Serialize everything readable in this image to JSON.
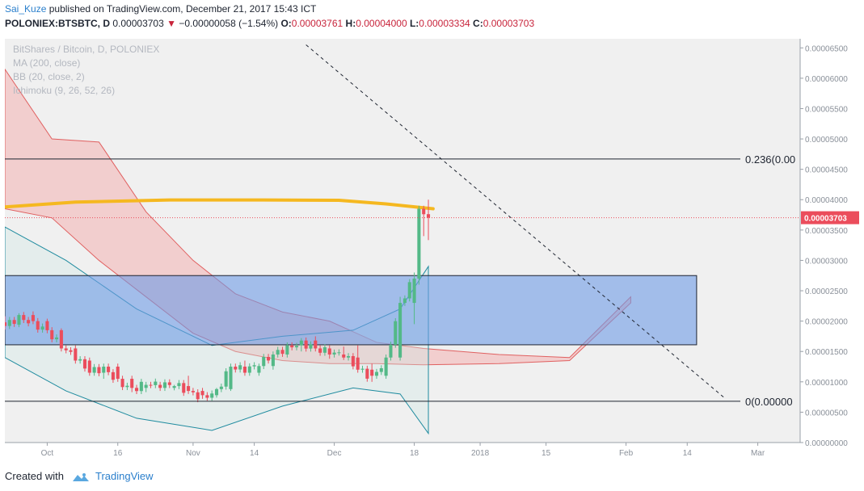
{
  "header": {
    "author": "Sai_Kuze",
    "published_text": "published on TradingView.com, December 21, 2017 15:43 ICT",
    "symbol": "POLONIEX:BTSBTC, D",
    "last": "0.00003703",
    "arrow": "▼",
    "change": "−0.00000058 (−1.54%)",
    "o_label": "O:",
    "o_value": "0.00003761",
    "h_label": "H:",
    "h_value": "0.00004000",
    "l_label": "L:",
    "l_value": "0.00003334",
    "c_label": "C:",
    "c_value": "0.00003703"
  },
  "legend": {
    "title": "BitShares / Bitcoin, D, POLONIEX",
    "ma": "MA (200, close)",
    "bb": "BB (20, close, 2)",
    "ichimoku": "Ichimoku (9, 26, 52, 26)"
  },
  "footer": {
    "created_with": "Created with",
    "brand": "TradingView"
  },
  "colors": {
    "up": "#53b987",
    "down": "#eb4d5c",
    "ma": "#f5b820",
    "zone": "#6e9be6",
    "cloud_bear": "#f4a3a3",
    "cloud_bull": "#b9e0b9",
    "bb": "#1f8b9f"
  },
  "chart_data": {
    "type": "candlestick",
    "symbol": "BitShares / Bitcoin",
    "exchange": "POLONIEX",
    "timeframe": "D",
    "y_axis": {
      "ticks": [
        "0.00006500",
        "0.00006000",
        "0.00005500",
        "0.00005000",
        "0.00004500",
        "0.00004000",
        "0.00003500",
        "0.00003000",
        "0.00002500",
        "0.00002000",
        "0.00001500",
        "0.00001000",
        "0.00000500",
        "0.00000000"
      ],
      "range": [
        0.0,
        6.65e-05
      ]
    },
    "x_axis": {
      "ticks": [
        "Oct",
        "16",
        "Nov",
        "14",
        "Dec",
        "18",
        "2018",
        "15",
        "Feb",
        "14",
        "Mar"
      ],
      "start_date": "2017-09-22",
      "end_date": "2018-03-10"
    },
    "price_label": "0.00003703",
    "fib_levels": [
      {
        "label": "0.236(0.00",
        "value": 4.67e-05
      },
      {
        "label": "0(0.00000",
        "value": 6.8e-06
      }
    ],
    "zone": {
      "low": 1.61e-05,
      "high": 2.75e-05,
      "start": "2017-09-22",
      "end": "2018-02-16"
    },
    "trendline": {
      "from": [
        "2017-11-25",
        6.55e-05
      ],
      "to": [
        "2018-02-22",
        7.3e-06
      ]
    },
    "ma200": [
      [
        "2017-09-22",
        3.88e-05
      ],
      [
        "2017-10-07",
        3.96e-05
      ],
      [
        "2017-10-27",
        3.995e-05
      ],
      [
        "2017-11-16",
        3.995e-05
      ],
      [
        "2017-12-02",
        3.99e-05
      ],
      [
        "2017-12-12",
        3.93e-05
      ],
      [
        "2017-12-22",
        3.85e-05
      ]
    ],
    "candles_approx": [
      [
        "2017-09-22",
        1.98e-05,
        2.08e-05,
        1.86e-05,
        1.92e-05
      ],
      [
        "2017-09-25",
        1.94e-05,
        2.13e-05,
        1.9e-05,
        2.1e-05
      ],
      [
        "2017-09-28",
        2.1e-05,
        2.16e-05,
        1.95e-05,
        2e-05
      ],
      [
        "2017-10-01",
        2e-05,
        2.04e-05,
        1.8e-05,
        1.85e-05
      ],
      [
        "2017-10-04",
        1.85e-05,
        1.88e-05,
        1.5e-05,
        1.55e-05
      ],
      [
        "2017-10-07",
        1.55e-05,
        1.6e-05,
        1.3e-05,
        1.35e-05
      ],
      [
        "2017-10-10",
        1.35e-05,
        1.4e-05,
        1.1e-05,
        1.15e-05
      ],
      [
        "2017-10-13",
        1.15e-05,
        1.3e-05,
        1.05e-05,
        1.25e-05
      ],
      [
        "2017-10-16",
        1.25e-05,
        1.3e-05,
        1e-05,
        1.05e-05
      ],
      [
        "2017-10-19",
        1.05e-05,
        1.1e-05,
        8.3e-06,
        9e-06
      ],
      [
        "2017-10-22",
        9e-06,
        1e-05,
        8.3e-06,
        9.5e-06
      ],
      [
        "2017-10-25",
        9.5e-06,
        1e-05,
        8.5e-06,
        9e-06
      ],
      [
        "2017-10-28",
        9e-06,
        9.5e-06,
        8.6e-06,
        9.3e-06
      ],
      [
        "2017-10-31",
        9.3e-06,
        1.1e-05,
        8e-06,
        8.5e-06
      ],
      [
        "2017-11-03",
        8.5e-06,
        9e-06,
        7.2e-06,
        7.8e-06
      ],
      [
        "2017-11-06",
        7.8e-06,
        9e-06,
        7.4e-06,
        8.8e-06
      ],
      [
        "2017-11-09",
        8.8e-06,
        1.3e-05,
        8.5e-06,
        1.25e-05
      ],
      [
        "2017-11-12",
        1.25e-05,
        1.35e-05,
        1.1e-05,
        1.15e-05
      ],
      [
        "2017-11-15",
        1.15e-05,
        1.3e-05,
        1.1e-05,
        1.26e-05
      ],
      [
        "2017-11-18",
        1.26e-05,
        1.5e-05,
        1.2e-05,
        1.45e-05
      ],
      [
        "2017-11-21",
        1.45e-05,
        1.65e-05,
        1.4e-05,
        1.6e-05
      ],
      [
        "2017-11-24",
        1.6e-05,
        1.72e-05,
        1.5e-05,
        1.68e-05
      ],
      [
        "2017-11-27",
        1.68e-05,
        1.75e-05,
        1.5e-05,
        1.55e-05
      ],
      [
        "2017-11-30",
        1.55e-05,
        1.6e-05,
        1.38e-05,
        1.45e-05
      ],
      [
        "2017-12-03",
        1.45e-05,
        1.58e-05,
        1.36e-05,
        1.4e-05
      ],
      [
        "2017-12-06",
        1.4e-05,
        1.6e-05,
        1.15e-05,
        1.2e-05
      ],
      [
        "2017-12-09",
        1.2e-05,
        1.3e-05,
        1e-05,
        1.1e-05
      ],
      [
        "2017-12-12",
        1.1e-05,
        1.45e-05,
        1.05e-05,
        1.4e-05
      ],
      [
        "2017-12-15",
        1.4e-05,
        2.4e-05,
        1.35e-05,
        2.3e-05
      ],
      [
        "2017-12-18",
        2.3e-05,
        2.8e-05,
        1.95e-05,
        2.7e-05
      ],
      [
        "2017-12-19",
        2.7e-05,
        3.9e-05,
        2.6e-05,
        3.85e-05
      ],
      [
        "2017-12-20",
        3.85e-05,
        3.9e-05,
        3.4e-05,
        3.76e-05
      ],
      [
        "2017-12-21",
        3.761e-05,
        4e-05,
        3.334e-05,
        3.703e-05
      ]
    ]
  }
}
